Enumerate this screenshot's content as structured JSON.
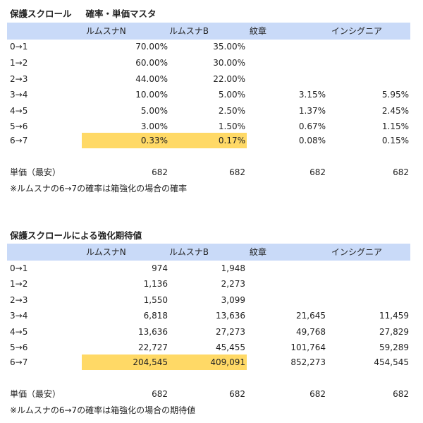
{
  "section1": {
    "title_part1": "保護スクロール",
    "title_part2": "確率・単価マスタ",
    "headers": [
      "ルムスナN",
      "ルムスナB",
      "紋章",
      "インシグニア"
    ],
    "rows": [
      {
        "label": "0→1",
        "values": [
          "70.00%",
          "35.00%",
          "",
          ""
        ]
      },
      {
        "label": "1→2",
        "values": [
          "60.00%",
          "30.00%",
          "",
          ""
        ]
      },
      {
        "label": "2→3",
        "values": [
          "44.00%",
          "22.00%",
          "",
          ""
        ]
      },
      {
        "label": "3→4",
        "values": [
          "10.00%",
          "5.00%",
          "3.15%",
          "5.95%"
        ]
      },
      {
        "label": "4→5",
        "values": [
          "5.00%",
          "2.50%",
          "1.37%",
          "2.45%"
        ]
      },
      {
        "label": "5→6",
        "values": [
          "3.00%",
          "1.50%",
          "0.67%",
          "1.15%"
        ]
      },
      {
        "label": "6→7",
        "values": [
          "0.33%",
          "0.17%",
          "0.08%",
          "0.15%"
        ]
      }
    ],
    "unit_price_label": "単価（最安）",
    "unit_prices": [
      "682",
      "682",
      "682",
      "682"
    ],
    "note": "※ルムスナの6→7の確率は箱強化の場合の確率"
  },
  "section2": {
    "title": "保護スクロールによる強化期待値",
    "headers": [
      "ルムスナN",
      "ルムスナB",
      "紋章",
      "インシグニア"
    ],
    "rows": [
      {
        "label": "0→1",
        "values": [
          "974",
          "1,948",
          "",
          ""
        ]
      },
      {
        "label": "1→2",
        "values": [
          "1,136",
          "2,273",
          "",
          ""
        ]
      },
      {
        "label": "2→3",
        "values": [
          "1,550",
          "3,099",
          "",
          ""
        ]
      },
      {
        "label": "3→4",
        "values": [
          "6,818",
          "13,636",
          "21,645",
          "11,459"
        ]
      },
      {
        "label": "4→5",
        "values": [
          "13,636",
          "27,273",
          "49,768",
          "27,829"
        ]
      },
      {
        "label": "5→6",
        "values": [
          "22,727",
          "45,455",
          "101,764",
          "59,289"
        ]
      },
      {
        "label": "6→7",
        "values": [
          "204,545",
          "409,091",
          "852,273",
          "454,545"
        ]
      }
    ],
    "unit_price_label": "単価（最安）",
    "unit_prices": [
      "682",
      "682",
      "682",
      "682"
    ],
    "note": "※ルムスナの6→7の確率は箱強化の場合の期待値"
  },
  "colors": {
    "header_bg": "#c9daf8",
    "highlight_bg": "#ffd966"
  }
}
